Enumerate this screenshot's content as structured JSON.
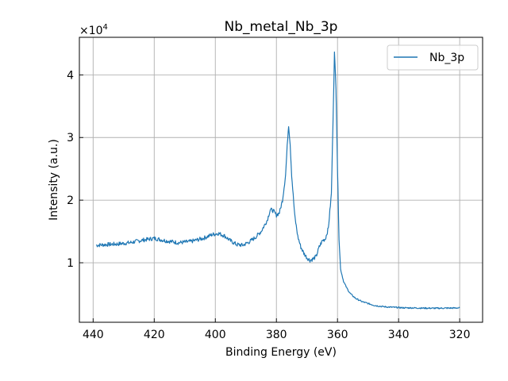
{
  "chart_data": {
    "type": "line",
    "title": "Nb_metal_Nb_3p",
    "xlabel": "Binding Energy (eV)",
    "ylabel": "Intensity (a.u.)",
    "y_multiplier_label": "×10",
    "y_multiplier_exp": "4",
    "x_reversed": true,
    "xlim": [
      444.5,
      312.5
    ],
    "ylim": [
      500,
      46000
    ],
    "x_ticks": [
      {
        "value": 440,
        "label": "440"
      },
      {
        "value": 420,
        "label": "420"
      },
      {
        "value": 400,
        "label": "400"
      },
      {
        "value": 380,
        "label": "380"
      },
      {
        "value": 360,
        "label": "360"
      },
      {
        "value": 340,
        "label": "340"
      },
      {
        "value": 320,
        "label": "320"
      }
    ],
    "y_ticks": [
      {
        "value": 10000,
        "label": "1"
      },
      {
        "value": 20000,
        "label": "2"
      },
      {
        "value": 30000,
        "label": "3"
      },
      {
        "value": 40000,
        "label": "4"
      }
    ],
    "grid": true,
    "legend_position": "top-right",
    "series": [
      {
        "name": "Nb_3p",
        "color": "#1f77b4",
        "x": [
          439,
          436,
          432,
          428,
          424,
          420,
          416,
          412,
          408,
          404,
          401,
          399,
          397,
          395,
          393,
          391,
          389,
          387,
          385,
          383,
          382,
          381,
          380,
          379,
          378,
          377,
          376.3,
          376,
          375.5,
          375,
          374,
          373,
          372,
          371,
          370,
          369,
          368,
          367,
          366,
          365,
          364,
          363,
          362,
          361.5,
          361,
          360.5,
          360,
          359.5,
          359,
          358,
          357,
          356,
          355,
          354,
          352,
          350,
          348,
          346,
          344,
          342,
          340,
          338,
          336,
          334,
          332,
          330,
          328,
          326,
          324,
          322,
          320
        ],
        "y": [
          12800,
          12900,
          13000,
          13200,
          13600,
          13900,
          13500,
          13200,
          13400,
          13900,
          14500,
          14700,
          14300,
          13500,
          12900,
          12800,
          13300,
          14000,
          15000,
          16800,
          18500,
          18300,
          17600,
          18000,
          20000,
          24000,
          30000,
          32000,
          29000,
          24000,
          17500,
          14200,
          12500,
          11500,
          10800,
          10400,
          10600,
          11000,
          12500,
          13500,
          13800,
          15500,
          21000,
          32000,
          43500,
          38000,
          25000,
          14000,
          9000,
          7000,
          6000,
          5200,
          4700,
          4300,
          3800,
          3500,
          3200,
          3050,
          2950,
          2900,
          2850,
          2800,
          2800,
          2780,
          2760,
          2750,
          2740,
          2750,
          2760,
          2770,
          2800
        ]
      }
    ]
  }
}
